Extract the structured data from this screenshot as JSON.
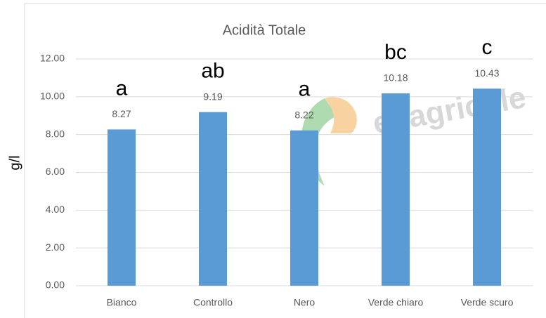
{
  "chart_data": {
    "type": "bar",
    "title": "Acidità Totale",
    "y_label": "g/l",
    "categories": [
      "Bianco",
      "Controllo",
      "Nero",
      "Verde chiaro",
      "Verde scuro"
    ],
    "values": [
      8.27,
      9.19,
      8.22,
      10.18,
      10.43
    ],
    "group_letters": [
      "a",
      "ab",
      "a",
      "bc",
      "c"
    ],
    "watermark": "edagricole",
    "color": "#5b9bd5",
    "ylim": [
      0,
      12
    ],
    "yticks": [
      {
        "value": 0,
        "label": "0.00"
      },
      {
        "value": 2,
        "label": "2.00"
      },
      {
        "value": 4,
        "label": "4.00"
      },
      {
        "value": 6,
        "label": "6.00"
      },
      {
        "value": 8,
        "label": "8.00"
      },
      {
        "value": 10,
        "label": "10.00"
      },
      {
        "value": 12,
        "label": "12.00"
      }
    ],
    "grid": true
  }
}
